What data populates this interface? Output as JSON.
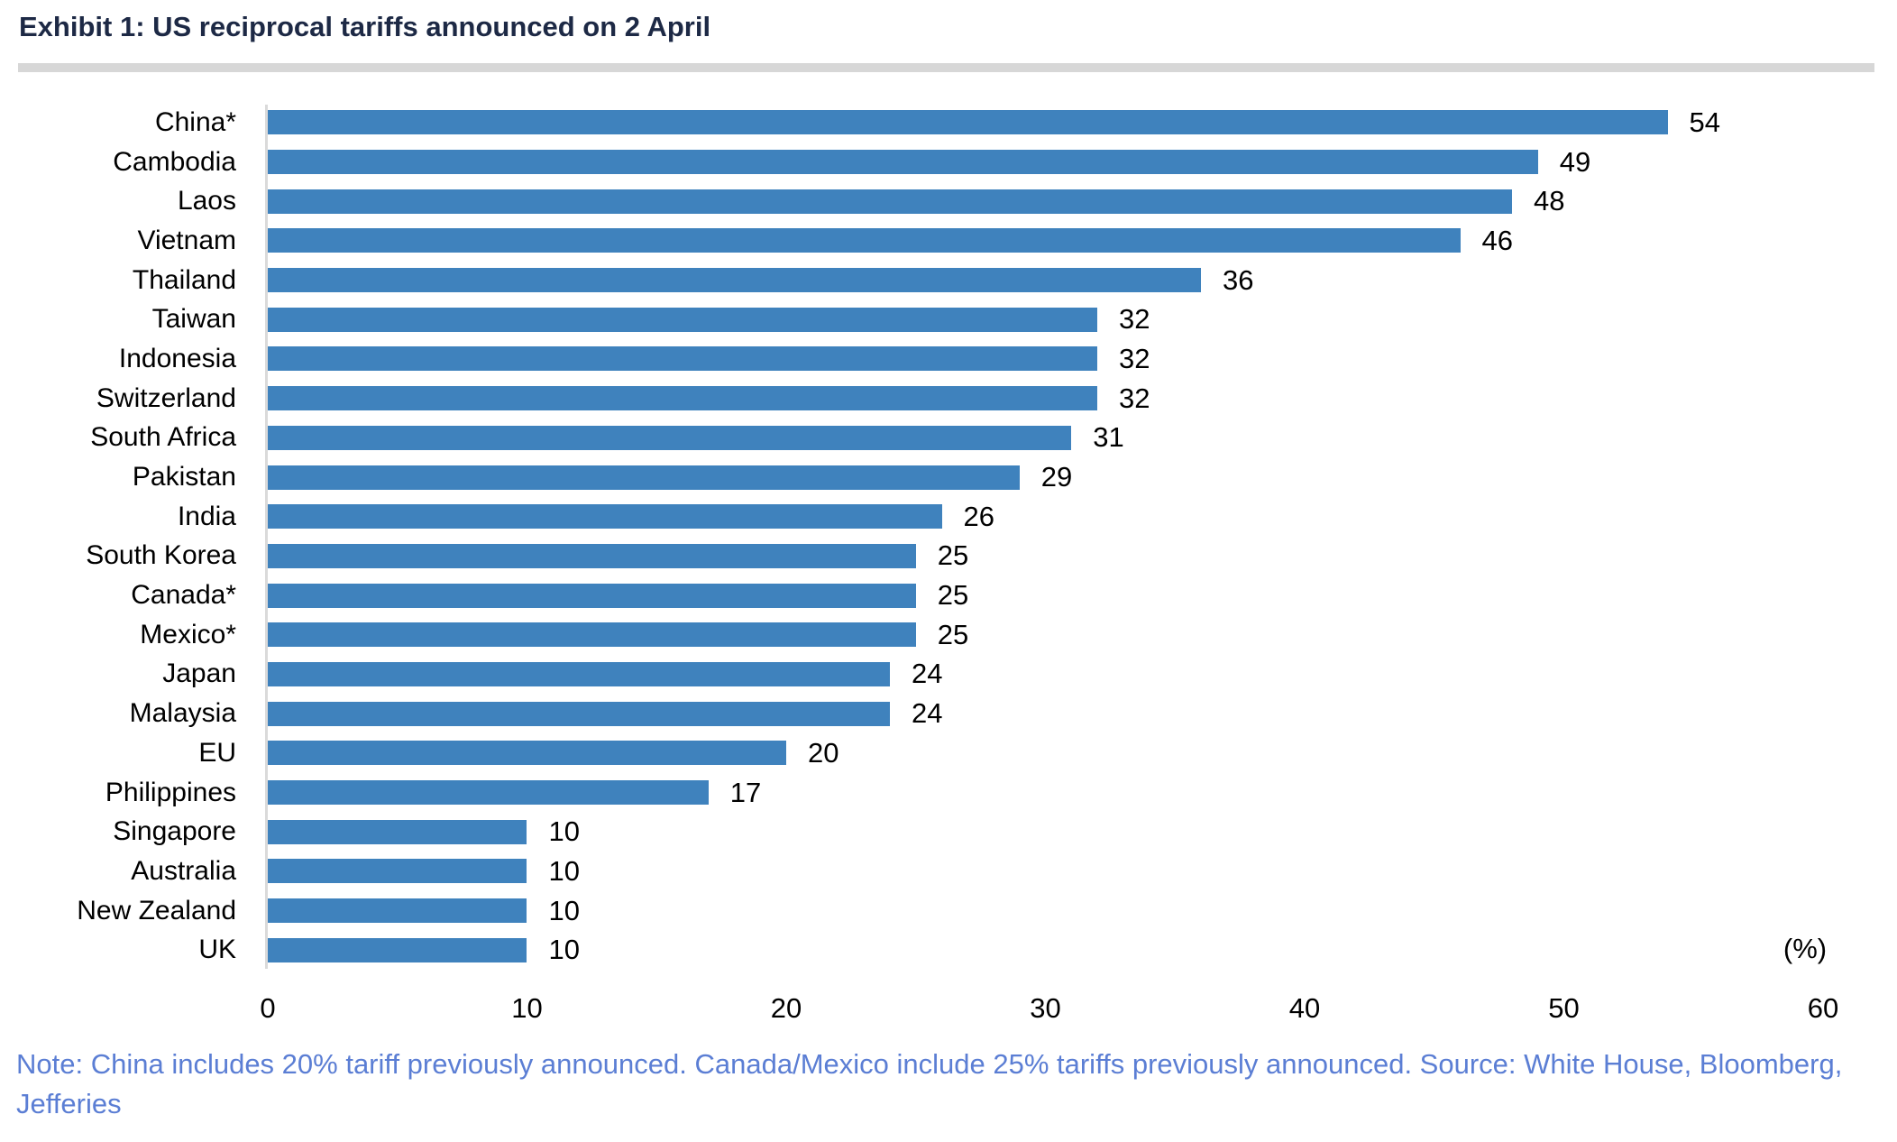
{
  "header": {
    "title": "Exhibit 1: US reciprocal tariffs announced on 2 April"
  },
  "chart_data": {
    "type": "bar",
    "orientation": "horizontal",
    "title": "Exhibit 1: US reciprocal tariffs announced on 2 April",
    "categories": [
      "China*",
      "Cambodia",
      "Laos",
      "Vietnam",
      "Thailand",
      "Taiwan",
      "Indonesia",
      "Switzerland",
      "South Africa",
      "Pakistan",
      "India",
      "South Korea",
      "Canada*",
      "Mexico*",
      "Japan",
      "Malaysia",
      "EU",
      "Philippines",
      "Singapore",
      "Australia",
      "New Zealand",
      "UK"
    ],
    "values": [
      54,
      49,
      48,
      46,
      36,
      32,
      32,
      32,
      31,
      29,
      26,
      25,
      25,
      25,
      24,
      24,
      20,
      17,
      10,
      10,
      10,
      10
    ],
    "xlabel": "(%)",
    "ylabel": "",
    "x_ticks": [
      0,
      10,
      20,
      30,
      40,
      50,
      60
    ],
    "xlim": [
      0,
      60
    ],
    "grid": false,
    "legend": "none",
    "value_labels": true,
    "bar_color": "#3f82bd"
  },
  "footer": {
    "note": "Note: China includes 20% tariff previously announced. Canada/Mexico include 25% tariffs previously announced. Source: White House, Bloomberg, Jefferies"
  },
  "colors": {
    "bar": "#3f82bd",
    "title_text": "#1d2945",
    "note_text": "#5b7ed4",
    "rule": "#d7d7d7",
    "axis_line": "#dadada"
  }
}
